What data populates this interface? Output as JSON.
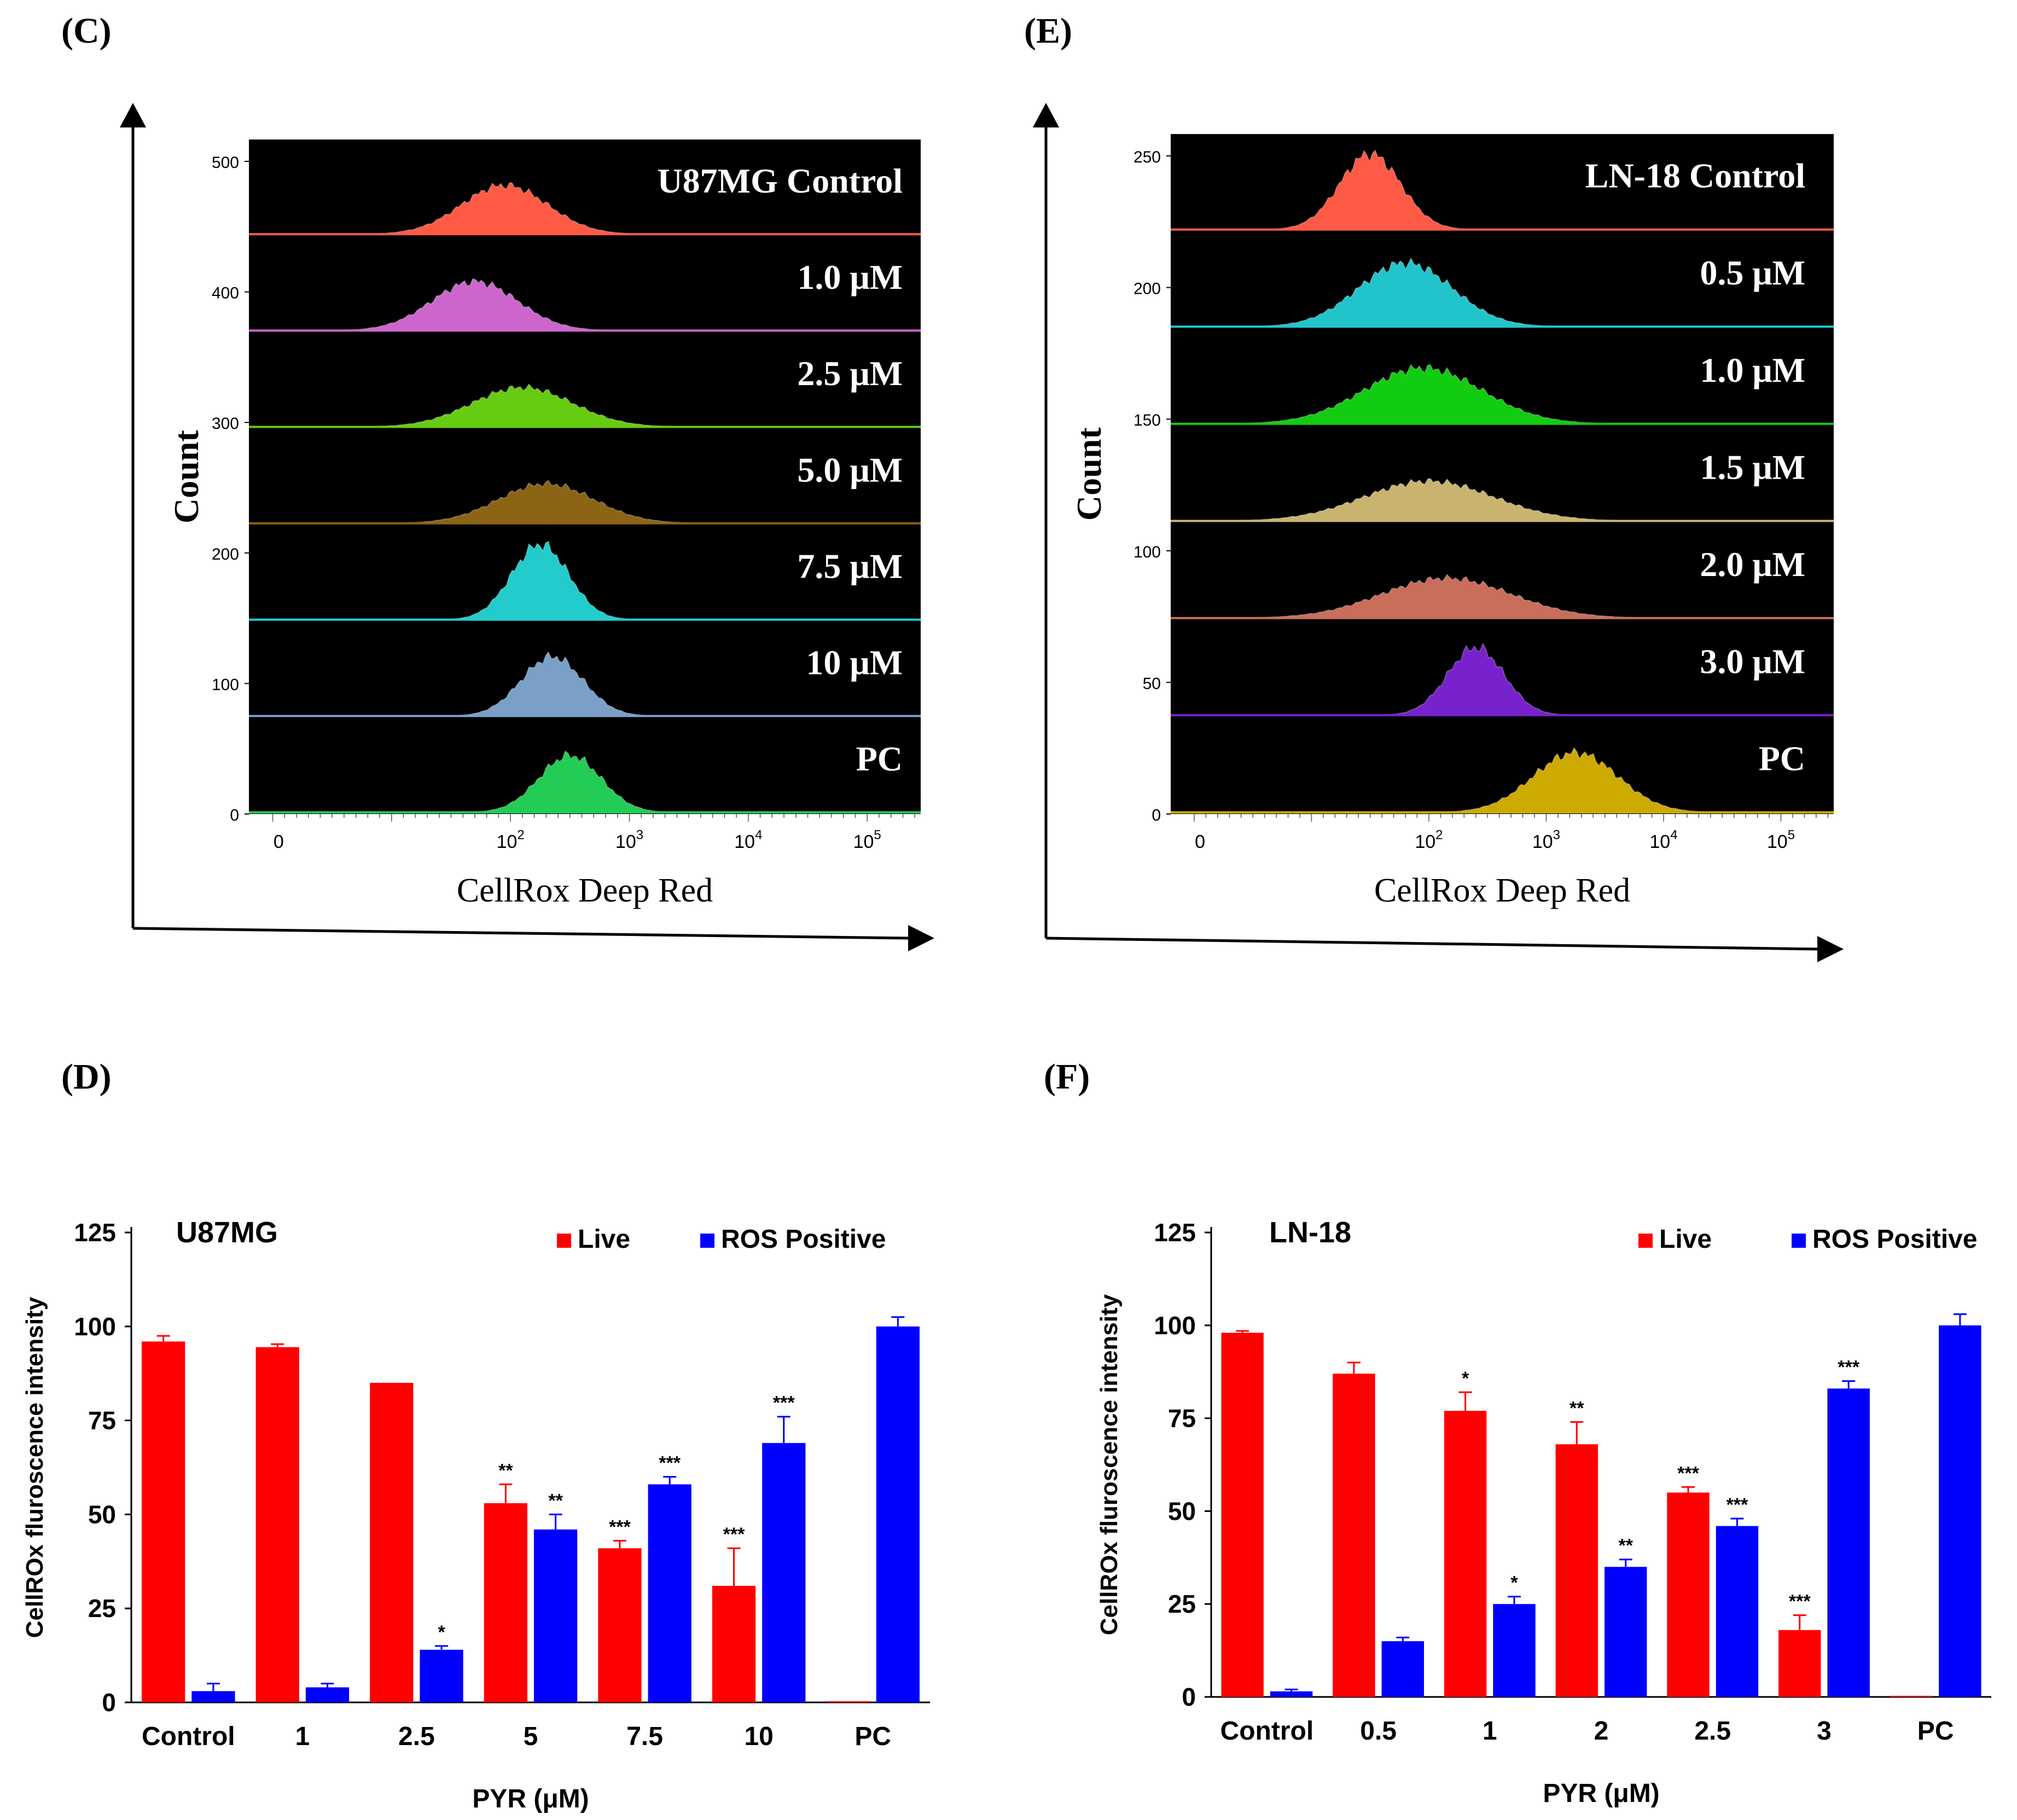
{
  "figure": {
    "panel_c_label": "(C)",
    "panel_e_label": "(E)",
    "panel_d_label": "(D)",
    "panel_f_label": "(F)"
  },
  "colors": {
    "live": "#ff0000",
    "ros": "#0000ff",
    "histogram_bg": "#000000",
    "axis": "#000000"
  },
  "chart_data": [
    {
      "id": "C",
      "type": "histogram",
      "cell_line": "U87MG",
      "xlabel": "CellRox Deep Red",
      "ylabel": "Count",
      "y_ticks": [
        "0",
        "100",
        "200",
        "300",
        "400",
        "500"
      ],
      "x_ticks": [
        {
          "base": "0",
          "exp": ""
        },
        {
          "base": "10",
          "exp": "2"
        },
        {
          "base": "10",
          "exp": "3"
        },
        {
          "base": "10",
          "exp": "4"
        },
        {
          "base": "10",
          "exp": "5"
        }
      ],
      "tracks": [
        {
          "label": "U87MG Control",
          "color": "#ff5a45",
          "peak_log": 1.95,
          "width_log": 0.36,
          "peak_height": 0.62
        },
        {
          "label": "1.0 μM",
          "color": "#cc66cc",
          "peak_log": 1.7,
          "width_log": 0.36,
          "peak_height": 0.62
        },
        {
          "label": "2.5 μM",
          "color": "#66cc11",
          "peak_log": 2.1,
          "width_log": 0.42,
          "peak_height": 0.5
        },
        {
          "label": "5.0 μM",
          "color": "#8b6414",
          "peak_log": 2.3,
          "width_log": 0.4,
          "peak_height": 0.5
        },
        {
          "label": "7.5 μM",
          "color": "#22cccc",
          "peak_log": 2.25,
          "width_log": 0.24,
          "peak_height": 0.95
        },
        {
          "label": "10 μM",
          "color": "#7aa0c8",
          "peak_log": 2.35,
          "width_log": 0.26,
          "peak_height": 0.75
        },
        {
          "label": "PC",
          "color": "#22cc55",
          "peak_log": 2.5,
          "width_log": 0.26,
          "peak_height": 0.72
        }
      ]
    },
    {
      "id": "E",
      "type": "histogram",
      "cell_line": "LN-18",
      "xlabel": "CellRox Deep Red",
      "ylabel": "Count",
      "y_ticks": [
        "0",
        "50",
        "100",
        "150",
        "200",
        "250"
      ],
      "x_ticks": [
        {
          "base": "0",
          "exp": ""
        },
        {
          "base": "10",
          "exp": "2"
        },
        {
          "base": "10",
          "exp": "3"
        },
        {
          "base": "10",
          "exp": "4"
        },
        {
          "base": "10",
          "exp": "5"
        }
      ],
      "tracks": [
        {
          "label": "LN-18 Control",
          "color": "#ff5a45",
          "peak_log": 1.5,
          "width_log": 0.26,
          "peak_height": 0.95
        },
        {
          "label": "0.5 μM",
          "color": "#22c4cc",
          "peak_log": 1.8,
          "width_log": 0.4,
          "peak_height": 0.8
        },
        {
          "label": "1.0 μM",
          "color": "#11cc11",
          "peak_log": 1.95,
          "width_log": 0.5,
          "peak_height": 0.7
        },
        {
          "label": "1.5 μM",
          "color": "#c8b46e",
          "peak_log": 2.0,
          "width_log": 0.55,
          "peak_height": 0.5
        },
        {
          "label": "2.0 μM",
          "color": "#c86e5a",
          "peak_log": 2.15,
          "width_log": 0.55,
          "peak_height": 0.5
        },
        {
          "label": "3.0 μM",
          "color": "#7722cc",
          "peak_log": 2.4,
          "width_log": 0.24,
          "peak_height": 0.85
        },
        {
          "label": "PC",
          "color": "#ccaa00",
          "peak_log": 3.25,
          "width_log": 0.36,
          "peak_height": 0.75
        }
      ]
    },
    {
      "id": "D",
      "type": "bar",
      "title": "U87MG",
      "xlabel": "PYR (μM)",
      "ylabel": "CellROx fluroscence intensity",
      "ylim": [
        0,
        125
      ],
      "y_ticks": [
        "0",
        "25",
        "50",
        "75",
        "100",
        "125"
      ],
      "categories": [
        "Control",
        "1",
        "2.5",
        "5",
        "7.5",
        "10",
        "PC"
      ],
      "series": [
        {
          "name": "Live",
          "color": "#ff0000",
          "values": [
            96,
            94.5,
            85,
            53,
            41,
            31,
            0.3
          ],
          "errors": [
            1.5,
            0.8,
            0,
            5,
            2,
            10,
            0
          ],
          "sig": [
            "",
            "",
            "",
            "**",
            "***",
            "***",
            ""
          ]
        },
        {
          "name": "ROS Positive",
          "color": "#0000ff",
          "values": [
            3,
            4,
            14,
            46,
            58,
            69,
            100
          ],
          "errors": [
            2,
            1,
            1,
            4,
            2,
            7,
            2.5
          ],
          "sig": [
            "",
            "",
            "*",
            "**",
            "***",
            "***",
            ""
          ]
        }
      ]
    },
    {
      "id": "F",
      "type": "bar",
      "title": "LN-18",
      "xlabel": "PYR (μM)",
      "ylabel": "CellROx fluroscence intensity",
      "ylim": [
        0,
        125
      ],
      "y_ticks": [
        "0",
        "25",
        "50",
        "75",
        "100",
        "125"
      ],
      "categories": [
        "Control",
        "0.5",
        "1",
        "2",
        "2.5",
        "3",
        "PC"
      ],
      "series": [
        {
          "name": "Live",
          "color": "#ff0000",
          "values": [
            98,
            87,
            77,
            68,
            55,
            18,
            0.3
          ],
          "errors": [
            0.5,
            3,
            5,
            6,
            1.5,
            4,
            0
          ],
          "sig": [
            "",
            "",
            "*",
            "**",
            "***",
            "***",
            ""
          ]
        },
        {
          "name": "ROS Positive",
          "color": "#0000ff",
          "values": [
            1.5,
            15,
            25,
            35,
            46,
            83,
            100
          ],
          "errors": [
            0.5,
            1,
            2,
            2,
            2,
            2,
            3
          ],
          "sig": [
            "",
            "",
            "*",
            "**",
            "***",
            "***",
            ""
          ]
        }
      ]
    }
  ]
}
